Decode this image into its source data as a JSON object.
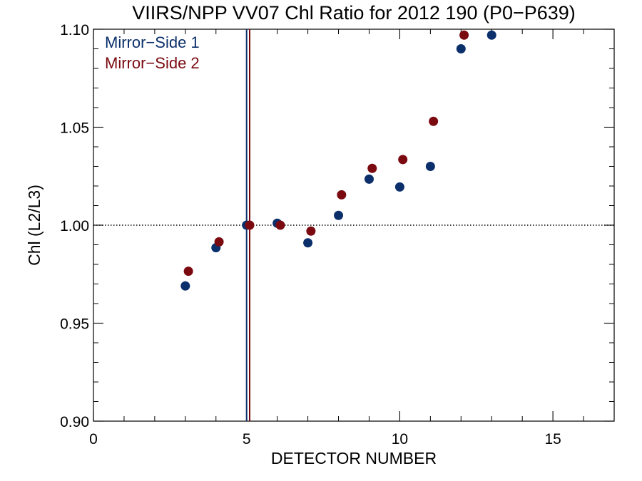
{
  "chart_data": {
    "type": "scatter",
    "title": "VIIRS/NPP VV07 Chl Ratio for 2012 190 (P0−P639)",
    "xlabel": "DETECTOR NUMBER",
    "ylabel": "Chl (L2/L3)",
    "xlim": [
      0,
      17
    ],
    "ylim": [
      0.9,
      1.1
    ],
    "xticks": [
      0,
      5,
      10,
      15
    ],
    "xtick_labels": [
      "0",
      "5",
      "10",
      "15"
    ],
    "yticks": [
      0.9,
      0.95,
      1.0,
      1.05,
      1.1
    ],
    "ytick_labels": [
      "0.90",
      "0.95",
      "1.00",
      "1.05",
      "1.10"
    ],
    "x_minor_step": 1,
    "y_minor_step": 0.01,
    "grid": false,
    "legend_position": "top-left",
    "reference_line": {
      "y": 1.0,
      "style": "dotted",
      "color": "#000000"
    },
    "vertical_lines": [
      {
        "x": 5.0,
        "color": "#0b2f6b"
      },
      {
        "x": 5.1,
        "color": "#7a0a10"
      }
    ],
    "series": [
      {
        "name": "Mirror−Side 1",
        "color": "#0b2f6b",
        "x": [
          3,
          4,
          5,
          6,
          7,
          8,
          9,
          10,
          11,
          12,
          13
        ],
        "y": [
          0.969,
          0.9885,
          1.0,
          1.001,
          0.991,
          1.005,
          1.0235,
          1.0195,
          1.03,
          1.09,
          1.097
        ]
      },
      {
        "name": "Mirror−Side 2",
        "color": "#7a0a10",
        "x": [
          3.1,
          4.1,
          5.1,
          6.1,
          7.1,
          8.1,
          9.1,
          10.1,
          11.1,
          12.1
        ],
        "y": [
          0.9765,
          0.9915,
          1.0,
          1.0,
          0.997,
          1.0155,
          1.029,
          1.0335,
          1.053,
          1.097
        ]
      }
    ]
  }
}
